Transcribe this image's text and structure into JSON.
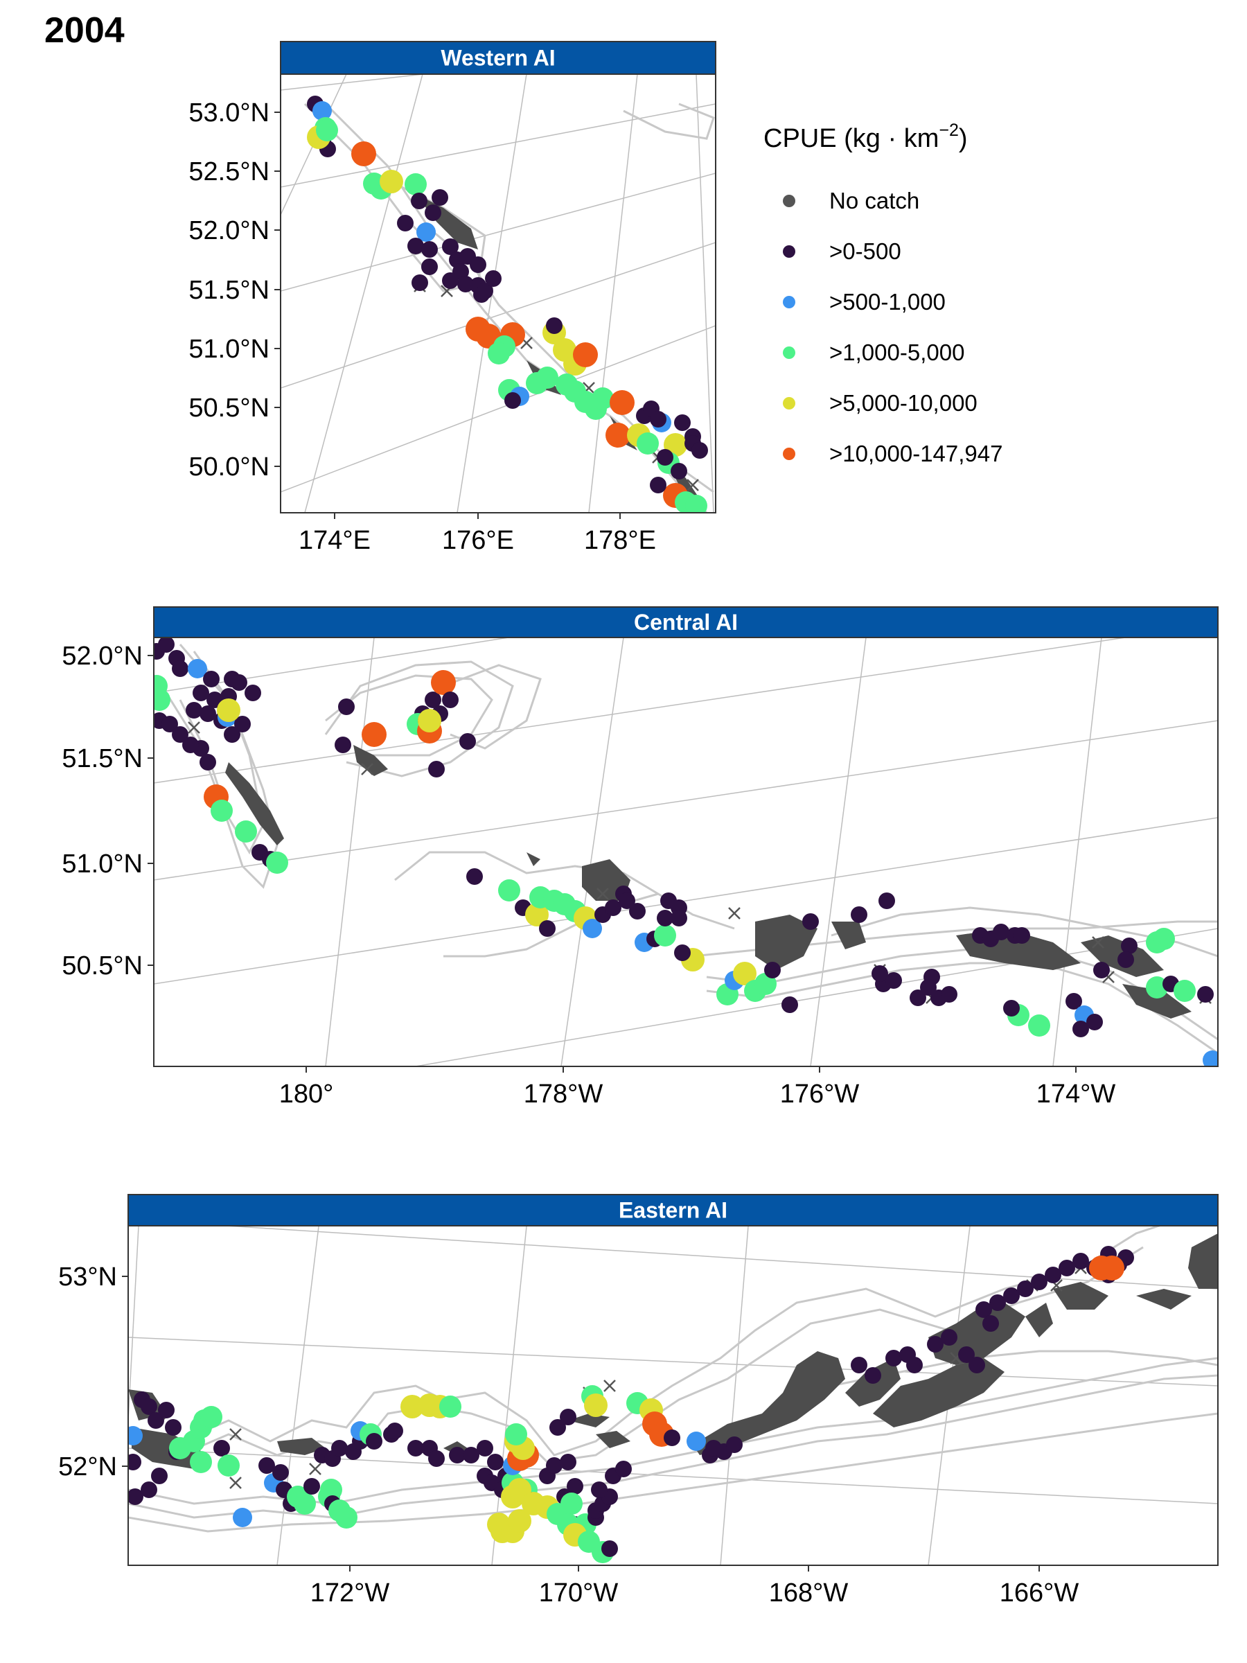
{
  "figure": {
    "title": "2004"
  },
  "colors": {
    "strip": "#0455a4",
    "land": "#4d4d4d",
    "contour": "#c8c8c8",
    "graticule": "#bdbdbd",
    "no_catch": "#555555",
    "cat1": "#2d1141",
    "cat2": "#3b93f0",
    "cat3": "#4df289",
    "cat4": "#dede33",
    "cat5": "#ee5a17"
  },
  "legend": {
    "title": "CPUE (kg · km⁻²)",
    "title_main": "CPUE (kg · km",
    "title_sup": "−2",
    "title_close": ")",
    "items": [
      {
        "label": "No catch",
        "color": "#555555"
      },
      {
        "label": ">0-500",
        "color": "#2d1141"
      },
      {
        "label": ">500-1,000",
        "color": "#3b93f0"
      },
      {
        "label": ">1,000-5,000",
        "color": "#4df289"
      },
      {
        "label": ">5,000-10,000",
        "color": "#dede33"
      },
      {
        "label": ">10,000-147,947",
        "color": "#ee5a17"
      }
    ]
  },
  "panels": [
    {
      "name": "western",
      "strip": "Western AI",
      "y_ticks": [
        "53.0°N",
        "52.5°N",
        "52.0°N",
        "51.5°N",
        "51.0°N",
        "50.5°N",
        "50.0°N"
      ],
      "x_ticks": [
        "174°E",
        "176°E",
        "178°E"
      ]
    },
    {
      "name": "central",
      "strip": "Central AI",
      "y_ticks": [
        "52.0°N",
        "51.5°N",
        "51.0°N",
        "50.5°N"
      ],
      "x_ticks": [
        "180°",
        "178°W",
        "176°W",
        "174°W"
      ]
    },
    {
      "name": "eastern",
      "strip": "Eastern AI",
      "y_ticks": [
        "53°N",
        "52°N"
      ],
      "x_ticks": [
        "172°W",
        "170°W",
        "168°W",
        "166°W"
      ]
    }
  ]
}
